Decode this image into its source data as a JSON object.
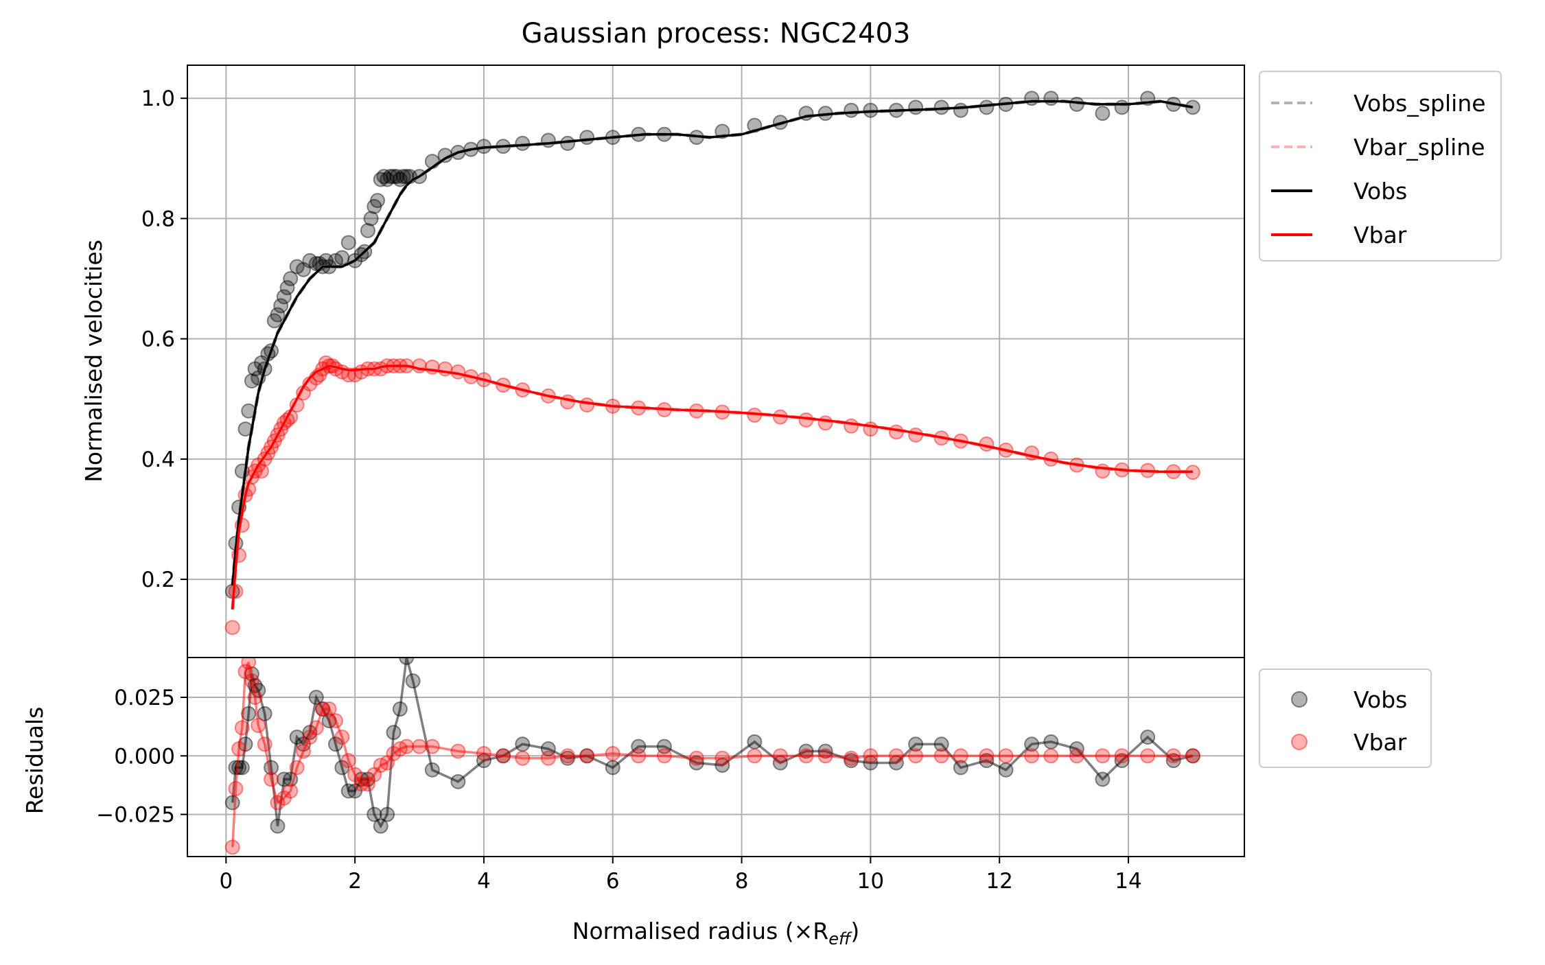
{
  "chart_data": [
    {
      "type": "line",
      "title": "Gaussian process: NGC2403",
      "xlabel": "",
      "ylabel": "Normalised velocities",
      "xlim": [
        -0.6,
        15.8
      ],
      "ylim": [
        0.07,
        1.055
      ],
      "xticks": [
        "0",
        "2",
        "4",
        "6",
        "8",
        "10",
        "12",
        "14"
      ],
      "yticks": [
        "0.2",
        "0.4",
        "0.6",
        "0.8",
        "1.0"
      ],
      "grid": true,
      "legend_position": "outside-right-top",
      "legend": [
        "Vobs_spline",
        "Vbar_spline",
        "Vobs",
        "Vbar"
      ],
      "x": [
        0.1,
        0.15,
        0.2,
        0.25,
        0.3,
        0.35,
        0.4,
        0.45,
        0.5,
        0.6,
        0.7,
        0.8,
        0.9,
        1.0,
        1.1,
        1.2,
        1.3,
        1.4,
        1.5,
        1.6,
        1.7,
        1.8,
        1.9,
        2.0,
        2.1,
        2.2,
        2.3,
        2.4,
        2.5,
        2.6,
        2.7,
        2.8,
        2.9,
        3.0,
        3.2,
        3.4,
        3.6,
        3.8,
        4.0,
        4.3,
        4.6,
        5.0,
        5.5,
        6.0,
        6.5,
        7.0,
        7.5,
        8.0,
        8.5,
        9.0,
        9.5,
        10.0,
        10.5,
        11.0,
        11.5,
        12.0,
        12.5,
        13.0,
        13.5,
        14.0,
        14.5,
        15.0
      ],
      "series": [
        {
          "name": "Vobs_spline",
          "color": "#808080",
          "dashed": true,
          "values": [
            0.19,
            0.25,
            0.3,
            0.34,
            0.38,
            0.42,
            0.45,
            0.48,
            0.51,
            0.55,
            0.58,
            0.61,
            0.63,
            0.65,
            0.67,
            0.685,
            0.7,
            0.71,
            0.72,
            0.72,
            0.72,
            0.72,
            0.725,
            0.73,
            0.74,
            0.75,
            0.76,
            0.78,
            0.8,
            0.82,
            0.84,
            0.855,
            0.865,
            0.87,
            0.885,
            0.9,
            0.91,
            0.915,
            0.918,
            0.92,
            0.922,
            0.925,
            0.93,
            0.935,
            0.94,
            0.94,
            0.935,
            0.94,
            0.955,
            0.97,
            0.975,
            0.978,
            0.98,
            0.982,
            0.985,
            0.99,
            0.995,
            0.995,
            0.99,
            0.99,
            0.995,
            0.985
          ]
        },
        {
          "name": "Vbar_spline",
          "color": "#ff7f7f",
          "dashed": true,
          "values": [
            0.15,
            0.22,
            0.28,
            0.31,
            0.34,
            0.36,
            0.37,
            0.38,
            0.39,
            0.405,
            0.42,
            0.44,
            0.46,
            0.48,
            0.5,
            0.52,
            0.535,
            0.545,
            0.55,
            0.555,
            0.553,
            0.55,
            0.548,
            0.548,
            0.549,
            0.55,
            0.55,
            0.553,
            0.555,
            0.555,
            0.555,
            0.555,
            0.553,
            0.55,
            0.548,
            0.545,
            0.542,
            0.537,
            0.532,
            0.523,
            0.515,
            0.505,
            0.495,
            0.488,
            0.485,
            0.482,
            0.48,
            0.477,
            0.473,
            0.468,
            0.462,
            0.455,
            0.447,
            0.438,
            0.428,
            0.417,
            0.405,
            0.394,
            0.386,
            0.381,
            0.379,
            0.379
          ]
        },
        {
          "name": "Vobs",
          "color": "#000000",
          "dashed": false,
          "values": [
            0.19,
            0.25,
            0.3,
            0.34,
            0.38,
            0.42,
            0.45,
            0.48,
            0.51,
            0.55,
            0.58,
            0.61,
            0.63,
            0.65,
            0.67,
            0.685,
            0.7,
            0.71,
            0.72,
            0.72,
            0.72,
            0.72,
            0.725,
            0.73,
            0.74,
            0.75,
            0.76,
            0.78,
            0.8,
            0.82,
            0.84,
            0.855,
            0.865,
            0.87,
            0.885,
            0.9,
            0.91,
            0.915,
            0.918,
            0.92,
            0.922,
            0.925,
            0.93,
            0.935,
            0.94,
            0.94,
            0.935,
            0.94,
            0.955,
            0.97,
            0.975,
            0.978,
            0.98,
            0.982,
            0.985,
            0.99,
            0.995,
            0.995,
            0.99,
            0.99,
            0.995,
            0.985
          ]
        },
        {
          "name": "Vbar",
          "color": "#ff0000",
          "dashed": false,
          "values": [
            0.15,
            0.22,
            0.28,
            0.31,
            0.34,
            0.36,
            0.37,
            0.38,
            0.39,
            0.405,
            0.42,
            0.44,
            0.46,
            0.48,
            0.5,
            0.52,
            0.535,
            0.545,
            0.55,
            0.555,
            0.553,
            0.55,
            0.548,
            0.548,
            0.549,
            0.55,
            0.55,
            0.553,
            0.555,
            0.555,
            0.555,
            0.555,
            0.553,
            0.55,
            0.548,
            0.545,
            0.542,
            0.537,
            0.532,
            0.523,
            0.515,
            0.505,
            0.495,
            0.488,
            0.485,
            0.482,
            0.48,
            0.477,
            0.473,
            0.468,
            0.462,
            0.455,
            0.447,
            0.438,
            0.428,
            0.417,
            0.405,
            0.394,
            0.386,
            0.381,
            0.379,
            0.379
          ]
        }
      ],
      "scatter": [
        {
          "name": "Vobs",
          "color": "#000000",
          "x": [
            0.1,
            0.15,
            0.2,
            0.25,
            0.3,
            0.35,
            0.4,
            0.45,
            0.5,
            0.55,
            0.6,
            0.65,
            0.7,
            0.75,
            0.8,
            0.85,
            0.9,
            0.95,
            1.0,
            1.1,
            1.2,
            1.3,
            1.4,
            1.45,
            1.5,
            1.55,
            1.6,
            1.7,
            1.8,
            1.9,
            2.0,
            2.1,
            2.15,
            2.2,
            2.25,
            2.3,
            2.35,
            2.4,
            2.45,
            2.5,
            2.55,
            2.6,
            2.65,
            2.7,
            2.75,
            2.8,
            2.85,
            3.0,
            3.2,
            3.4,
            3.6,
            3.8,
            4.0,
            4.3,
            4.6,
            5.0,
            5.3,
            5.6,
            6.0,
            6.4,
            6.8,
            7.3,
            7.7,
            8.2,
            8.6,
            9.0,
            9.3,
            9.7,
            10.0,
            10.4,
            10.7,
            11.1,
            11.4,
            11.8,
            12.1,
            12.5,
            12.8,
            13.2,
            13.6,
            13.9,
            14.3,
            14.7,
            15.0
          ],
          "y": [
            0.18,
            0.26,
            0.32,
            0.38,
            0.45,
            0.48,
            0.53,
            0.55,
            0.535,
            0.56,
            0.55,
            0.575,
            0.58,
            0.63,
            0.64,
            0.655,
            0.67,
            0.685,
            0.7,
            0.72,
            0.715,
            0.73,
            0.725,
            0.725,
            0.72,
            0.73,
            0.72,
            0.73,
            0.735,
            0.76,
            0.73,
            0.74,
            0.745,
            0.78,
            0.8,
            0.82,
            0.83,
            0.865,
            0.87,
            0.865,
            0.87,
            0.87,
            0.87,
            0.865,
            0.87,
            0.87,
            0.87,
            0.87,
            0.895,
            0.905,
            0.91,
            0.915,
            0.92,
            0.92,
            0.925,
            0.93,
            0.925,
            0.935,
            0.935,
            0.94,
            0.94,
            0.935,
            0.945,
            0.955,
            0.96,
            0.975,
            0.975,
            0.98,
            0.98,
            0.98,
            0.985,
            0.985,
            0.98,
            0.985,
            0.99,
            1.0,
            1.0,
            0.99,
            0.975,
            0.985,
            1.0,
            0.99,
            0.985
          ]
        },
        {
          "name": "Vbar",
          "color": "#ff0000",
          "x": [
            0.1,
            0.15,
            0.2,
            0.25,
            0.3,
            0.35,
            0.4,
            0.45,
            0.5,
            0.55,
            0.6,
            0.65,
            0.7,
            0.75,
            0.8,
            0.85,
            0.9,
            0.95,
            1.0,
            1.1,
            1.2,
            1.3,
            1.4,
            1.45,
            1.5,
            1.55,
            1.6,
            1.65,
            1.7,
            1.8,
            1.9,
            2.0,
            2.1,
            2.2,
            2.3,
            2.4,
            2.5,
            2.6,
            2.7,
            2.8,
            3.0,
            3.2,
            3.4,
            3.6,
            3.8,
            4.0,
            4.3,
            4.6,
            5.0,
            5.3,
            5.6,
            6.0,
            6.4,
            6.8,
            7.3,
            7.7,
            8.2,
            8.6,
            9.0,
            9.3,
            9.7,
            10.0,
            10.4,
            10.7,
            11.1,
            11.4,
            11.8,
            12.1,
            12.5,
            12.8,
            13.2,
            13.6,
            13.9,
            14.3,
            14.7,
            15.0
          ],
          "y": [
            0.12,
            0.18,
            0.24,
            0.29,
            0.34,
            0.35,
            0.37,
            0.38,
            0.39,
            0.38,
            0.4,
            0.41,
            0.42,
            0.43,
            0.44,
            0.45,
            0.46,
            0.465,
            0.47,
            0.49,
            0.51,
            0.525,
            0.535,
            0.54,
            0.55,
            0.56,
            0.555,
            0.555,
            0.55,
            0.545,
            0.54,
            0.54,
            0.545,
            0.55,
            0.55,
            0.55,
            0.555,
            0.555,
            0.555,
            0.555,
            0.555,
            0.553,
            0.55,
            0.545,
            0.537,
            0.532,
            0.523,
            0.515,
            0.505,
            0.495,
            0.49,
            0.488,
            0.485,
            0.482,
            0.48,
            0.478,
            0.473,
            0.47,
            0.465,
            0.46,
            0.455,
            0.45,
            0.445,
            0.44,
            0.435,
            0.43,
            0.425,
            0.415,
            0.41,
            0.4,
            0.39,
            0.38,
            0.382,
            0.381,
            0.379,
            0.378
          ]
        }
      ]
    },
    {
      "type": "scatter",
      "title": "",
      "xlabel": "Normalised radius (×R",
      "xlabel_sub": "eff",
      "xlabel_end": ")",
      "ylabel": "Residuals",
      "xlim": [
        -0.6,
        15.8
      ],
      "ylim": [
        -0.043,
        0.042
      ],
      "xticks": [
        "0",
        "2",
        "4",
        "6",
        "8",
        "10",
        "12",
        "14"
      ],
      "yticks": [
        "0.025",
        "0.000",
        "−0.025"
      ],
      "grid": true,
      "legend_position": "outside-right-top",
      "legend": [
        "Vobs",
        "Vbar"
      ],
      "series": [
        {
          "name": "Vobs",
          "color": "#000000",
          "x": [
            0.1,
            0.15,
            0.2,
            0.25,
            0.3,
            0.35,
            0.4,
            0.45,
            0.5,
            0.6,
            0.7,
            0.8,
            0.9,
            1.0,
            1.1,
            1.2,
            1.3,
            1.4,
            1.5,
            1.6,
            1.7,
            1.8,
            1.9,
            2.0,
            2.1,
            2.2,
            2.3,
            2.4,
            2.5,
            2.6,
            2.7,
            2.8,
            2.9,
            3.2,
            3.6,
            4.0,
            4.3,
            4.6,
            5.0,
            5.3,
            5.6,
            6.0,
            6.4,
            6.8,
            7.3,
            7.7,
            8.2,
            8.6,
            9.0,
            9.3,
            9.7,
            10.0,
            10.4,
            10.7,
            11.1,
            11.4,
            11.8,
            12.1,
            12.5,
            12.8,
            13.2,
            13.6,
            13.9,
            14.3,
            14.7,
            15.0
          ],
          "y": [
            -0.02,
            -0.005,
            -0.005,
            -0.005,
            0.005,
            0.018,
            0.035,
            0.03,
            0.028,
            0.018,
            -0.005,
            -0.03,
            -0.01,
            -0.01,
            0.008,
            0.005,
            0.01,
            0.025,
            0.02,
            0.015,
            0.005,
            -0.005,
            -0.015,
            -0.015,
            -0.01,
            -0.01,
            -0.025,
            -0.03,
            -0.025,
            0.01,
            0.02,
            0.042,
            0.032,
            -0.006,
            -0.011,
            -0.002,
            0.0,
            0.005,
            0.003,
            -0.001,
            0.0,
            -0.005,
            0.004,
            0.004,
            -0.003,
            -0.004,
            0.006,
            -0.003,
            0.002,
            0.002,
            -0.002,
            -0.003,
            -0.003,
            0.005,
            0.005,
            -0.005,
            -0.002,
            -0.006,
            0.005,
            0.006,
            0.003,
            -0.01,
            -0.002,
            0.008,
            -0.002,
            0.0
          ]
        },
        {
          "name": "Vbar",
          "color": "#ff0000",
          "x": [
            0.1,
            0.15,
            0.2,
            0.25,
            0.3,
            0.35,
            0.4,
            0.45,
            0.5,
            0.6,
            0.7,
            0.8,
            0.9,
            1.0,
            1.1,
            1.2,
            1.3,
            1.4,
            1.5,
            1.6,
            1.7,
            1.8,
            1.9,
            2.0,
            2.1,
            2.2,
            2.3,
            2.4,
            2.5,
            2.6,
            2.7,
            2.8,
            3.0,
            3.2,
            3.6,
            4.0,
            4.3,
            4.6,
            5.0,
            5.3,
            5.6,
            6.0,
            6.4,
            6.8,
            7.3,
            7.7,
            8.2,
            8.6,
            9.0,
            9.3,
            9.7,
            10.0,
            10.4,
            10.7,
            11.1,
            11.4,
            11.8,
            12.1,
            12.5,
            12.8,
            13.2,
            13.6,
            13.9,
            14.3,
            14.7,
            15.0
          ],
          "y": [
            -0.039,
            -0.014,
            0.003,
            0.012,
            0.036,
            0.04,
            0.032,
            0.025,
            0.013,
            0.005,
            -0.01,
            -0.02,
            -0.018,
            -0.015,
            -0.005,
            0.002,
            0.008,
            0.012,
            0.02,
            0.02,
            0.015,
            0.008,
            -0.002,
            -0.008,
            -0.012,
            -0.012,
            -0.008,
            -0.004,
            -0.003,
            0.001,
            0.003,
            0.004,
            0.004,
            0.004,
            0.002,
            0.001,
            0.0,
            -0.001,
            -0.001,
            0.0,
            0.0,
            0.001,
            0.0,
            0.0,
            -0.001,
            -0.001,
            0.0,
            0.0,
            0.0,
            0.0,
            -0.001,
            0.0,
            0.0,
            0.0,
            0.0,
            0.0,
            0.0,
            0.0,
            0.0,
            0.0,
            0.0,
            0.0,
            0.0,
            0.0,
            0.0,
            0.0
          ]
        }
      ]
    }
  ]
}
